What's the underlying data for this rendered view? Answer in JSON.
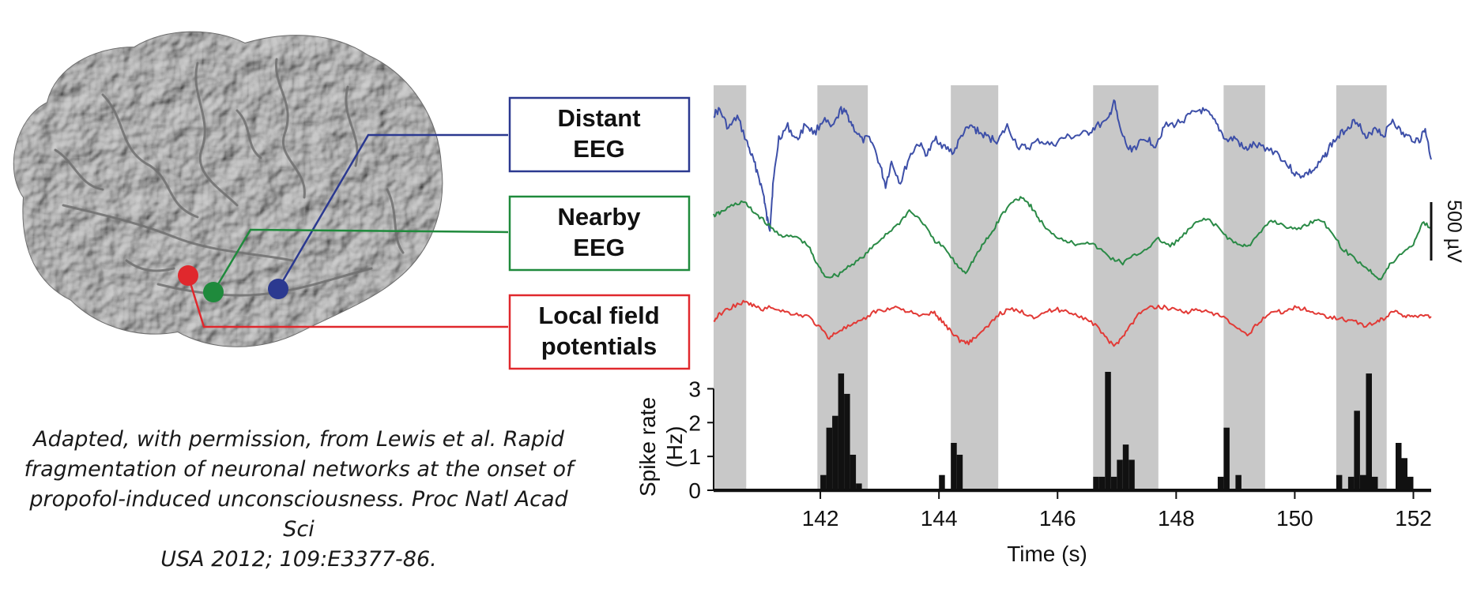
{
  "labels": [
    {
      "id": "distant",
      "lines": [
        "Distant",
        "EEG"
      ],
      "color": "#2b3990"
    },
    {
      "id": "nearby",
      "lines": [
        "Nearby",
        "EEG"
      ],
      "color": "#1f8a3c"
    },
    {
      "id": "local",
      "lines": [
        "Local field",
        "potentials"
      ],
      "color": "#e0282d"
    }
  ],
  "caption": {
    "lines": [
      "Adapted, with permission, from Lewis et al. Rapid",
      "fragmentation of neuronal networks at the onset of",
      "propofol-induced unconsciousness. Proc Natl Acad Sci",
      "USA 2012; 109:E3377-86."
    ]
  },
  "chart_data": {
    "type": "line",
    "xlabel": "Time (s)",
    "x_ticks": [
      142,
      144,
      146,
      148,
      150,
      152
    ],
    "xlim": [
      140.2,
      152.3
    ],
    "scale_bar": "500 µV",
    "shading_color": "#c8c8c8",
    "shaded_intervals": [
      [
        140.2,
        140.75
      ],
      [
        141.95,
        142.8
      ],
      [
        144.2,
        145.0
      ],
      [
        146.6,
        147.7
      ],
      [
        148.8,
        149.5
      ],
      [
        150.7,
        151.55
      ]
    ],
    "series": [
      {
        "name": "Distant EEG",
        "color": "#3d4fa8",
        "x": [
          140.2,
          140.3,
          140.45,
          140.6,
          140.75,
          140.85,
          140.95,
          141.05,
          141.1,
          141.15,
          141.2,
          141.3,
          141.45,
          141.6,
          141.75,
          141.9,
          142.05,
          142.2,
          142.35,
          142.45,
          142.55,
          142.7,
          142.85,
          143.0,
          143.1,
          143.2,
          143.35,
          143.5,
          143.65,
          143.8,
          143.95,
          144.1,
          144.25,
          144.4,
          144.55,
          144.7,
          144.85,
          145.0,
          145.15,
          145.35,
          145.5,
          145.7,
          145.9,
          146.1,
          146.3,
          146.5,
          146.65,
          146.85,
          146.95,
          147.05,
          147.2,
          147.35,
          147.5,
          147.65,
          147.8,
          148.0,
          148.2,
          148.4,
          148.55,
          148.7,
          148.85,
          149.0,
          149.15,
          149.3,
          149.5,
          149.7,
          149.9,
          150.05,
          150.2,
          150.35,
          150.5,
          150.6,
          150.75,
          150.9,
          151.05,
          151.2,
          151.35,
          151.5,
          151.65,
          151.8,
          151.95,
          152.1,
          152.2,
          152.3
        ],
        "y": [
          1.85,
          1.95,
          1.55,
          1.8,
          1.3,
          0.95,
          0.6,
          0.1,
          -0.35,
          -0.55,
          0.35,
          1.35,
          1.6,
          1.3,
          1.65,
          1.45,
          1.75,
          1.55,
          1.95,
          1.85,
          1.6,
          1.3,
          1.35,
          0.8,
          0.35,
          0.85,
          0.4,
          0.95,
          1.25,
          1.0,
          1.35,
          1.15,
          1.05,
          1.45,
          1.6,
          1.45,
          1.35,
          1.3,
          1.6,
          1.15,
          1.15,
          1.3,
          1.2,
          1.35,
          1.4,
          1.45,
          1.6,
          1.7,
          2.15,
          1.55,
          1.1,
          1.2,
          1.35,
          1.2,
          1.6,
          1.65,
          1.8,
          1.95,
          1.85,
          1.6,
          1.3,
          1.35,
          1.1,
          1.2,
          1.15,
          1.05,
          0.75,
          0.55,
          0.6,
          0.7,
          0.95,
          1.2,
          1.4,
          1.6,
          1.75,
          1.3,
          1.6,
          1.4,
          1.75,
          1.45,
          1.35,
          1.3,
          1.55,
          0.9
        ]
      },
      {
        "name": "Nearby EEG",
        "color": "#2a8a46",
        "x": [
          140.2,
          140.3,
          140.5,
          140.7,
          140.85,
          141.0,
          141.2,
          141.4,
          141.6,
          141.8,
          141.95,
          142.1,
          142.3,
          142.5,
          142.7,
          142.9,
          143.1,
          143.3,
          143.5,
          143.7,
          143.9,
          144.1,
          144.3,
          144.45,
          144.6,
          144.75,
          144.9,
          145.05,
          145.25,
          145.4,
          145.55,
          145.7,
          145.9,
          146.1,
          146.3,
          146.5,
          146.7,
          146.9,
          147.1,
          147.3,
          147.5,
          147.7,
          147.9,
          148.1,
          148.3,
          148.5,
          148.7,
          148.9,
          149.1,
          149.25,
          149.4,
          149.6,
          149.8,
          150.0,
          150.2,
          150.4,
          150.6,
          150.8,
          151.0,
          151.2,
          151.35,
          151.45,
          151.6,
          151.8,
          152.0,
          152.15,
          152.3
        ],
        "y": [
          0.55,
          0.6,
          0.75,
          0.85,
          0.65,
          0.5,
          0.25,
          0.1,
          0.1,
          -0.1,
          -0.5,
          -0.75,
          -0.7,
          -0.5,
          -0.35,
          -0.1,
          0.15,
          0.35,
          0.65,
          0.45,
          0.05,
          -0.15,
          -0.5,
          -0.65,
          -0.35,
          -0.05,
          0.2,
          0.55,
          0.85,
          0.95,
          0.75,
          0.45,
          0.15,
          0.05,
          -0.05,
          0.0,
          -0.15,
          -0.35,
          -0.45,
          -0.3,
          -0.15,
          0.05,
          -0.1,
          0.1,
          0.35,
          0.5,
          0.3,
          0.05,
          -0.1,
          -0.05,
          0.15,
          0.45,
          0.35,
          0.25,
          0.35,
          0.5,
          0.25,
          -0.15,
          -0.35,
          -0.55,
          -0.7,
          -0.8,
          -0.5,
          -0.25,
          -0.05,
          0.4,
          0.3
        ]
      },
      {
        "name": "Local field potentials",
        "color": "#e23a36",
        "x": [
          140.2,
          140.3,
          140.5,
          140.7,
          140.85,
          141.0,
          141.2,
          141.4,
          141.6,
          141.8,
          142.0,
          142.15,
          142.3,
          142.5,
          142.7,
          142.9,
          143.1,
          143.3,
          143.5,
          143.7,
          143.9,
          144.05,
          144.2,
          144.35,
          144.5,
          144.65,
          144.8,
          145.0,
          145.2,
          145.4,
          145.6,
          145.8,
          146.0,
          146.2,
          146.4,
          146.6,
          146.8,
          146.95,
          147.1,
          147.25,
          147.4,
          147.6,
          147.8,
          148.0,
          148.2,
          148.4,
          148.6,
          148.8,
          149.0,
          149.2,
          149.4,
          149.6,
          149.8,
          150.0,
          150.2,
          150.4,
          150.6,
          150.8,
          151.0,
          151.2,
          151.4,
          151.55,
          151.7,
          151.85,
          152.0,
          152.15,
          152.3
        ],
        "y": [
          -1.15,
          -1.0,
          -0.85,
          -0.75,
          -0.8,
          -0.9,
          -0.85,
          -0.95,
          -1.0,
          -1.05,
          -1.3,
          -1.5,
          -1.35,
          -1.25,
          -1.15,
          -0.95,
          -0.9,
          -0.85,
          -0.95,
          -1.05,
          -0.95,
          -1.15,
          -1.35,
          -1.55,
          -1.6,
          -1.45,
          -1.3,
          -1.0,
          -0.9,
          -0.95,
          -1.05,
          -0.95,
          -0.9,
          -0.95,
          -1.05,
          -1.2,
          -1.45,
          -1.7,
          -1.45,
          -1.2,
          -0.95,
          -0.85,
          -0.85,
          -0.9,
          -0.95,
          -0.9,
          -1.0,
          -1.05,
          -1.3,
          -1.45,
          -1.15,
          -0.95,
          -0.95,
          -0.85,
          -0.9,
          -1.0,
          -1.05,
          -1.1,
          -1.15,
          -1.25,
          -1.15,
          -1.05,
          -0.9,
          -1.05,
          -1.05,
          -1.0,
          -1.05
        ]
      }
    ],
    "spike_histogram": {
      "ylabel": "Spike rate (Hz)",
      "y_ticks": [
        0,
        1,
        2,
        3
      ],
      "ylim": [
        0,
        3.5
      ],
      "bin_width": 0.1,
      "bars": [
        {
          "x": 142.0,
          "value": 0.45
        },
        {
          "x": 142.1,
          "value": 1.85
        },
        {
          "x": 142.2,
          "value": 2.2
        },
        {
          "x": 142.3,
          "value": 3.45
        },
        {
          "x": 142.4,
          "value": 2.85
        },
        {
          "x": 142.5,
          "value": 1.05
        },
        {
          "x": 142.6,
          "value": 0.2
        },
        {
          "x": 144.0,
          "value": 0.45
        },
        {
          "x": 144.2,
          "value": 1.4
        },
        {
          "x": 144.3,
          "value": 1.05
        },
        {
          "x": 146.6,
          "value": 0.4
        },
        {
          "x": 146.7,
          "value": 0.4
        },
        {
          "x": 146.8,
          "value": 3.5
        },
        {
          "x": 146.9,
          "value": 0.4
        },
        {
          "x": 147.0,
          "value": 0.9
        },
        {
          "x": 147.1,
          "value": 1.35
        },
        {
          "x": 147.2,
          "value": 0.9
        },
        {
          "x": 148.7,
          "value": 0.4
        },
        {
          "x": 148.8,
          "value": 1.85
        },
        {
          "x": 149.0,
          "value": 0.45
        },
        {
          "x": 150.7,
          "value": 0.45
        },
        {
          "x": 150.9,
          "value": 0.4
        },
        {
          "x": 151.0,
          "value": 2.35
        },
        {
          "x": 151.1,
          "value": 0.45
        },
        {
          "x": 151.2,
          "value": 3.45
        },
        {
          "x": 151.3,
          "value": 0.4
        },
        {
          "x": 151.7,
          "value": 1.4
        },
        {
          "x": 151.8,
          "value": 0.95
        },
        {
          "x": 151.9,
          "value": 0.4
        }
      ]
    }
  }
}
